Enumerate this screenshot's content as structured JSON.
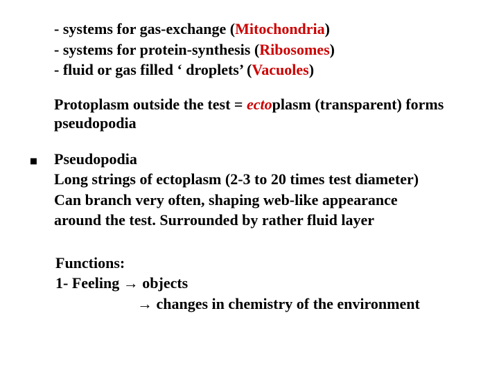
{
  "colors": {
    "text": "#000000",
    "highlight": "#cc0000",
    "background": "#ffffff"
  },
  "typography": {
    "family": "Times New Roman",
    "size_pt": 22,
    "bullet_size_pt": 36
  },
  "systems": {
    "line1_pre": "- systems for gas-exchange (",
    "line1_hi": "Mitochondria",
    "line1_post": ")",
    "line2_pre": "- systems for protein-synthesis (",
    "line2_hi": "Ribosomes",
    "line2_post": ")",
    "line3_pre": "- fluid or gas filled ‘ droplets’ (",
    "line3_hi": "Vacuoles",
    "line3_post": ")"
  },
  "protoplasm": {
    "pre": "Protoplasm outside the test = ",
    "ecto_prefix": "ecto",
    "ecto_rest": "plasm (transparent) forms pseudopodia"
  },
  "pseudo": {
    "title": "Pseudopodia",
    "l1": "Long strings of ectoplasm (2-3 to 20 times test diameter)",
    "l2": "Can branch very often, shaping web-like appearance",
    "l3": "around the test. Surrounded by rather fluid layer"
  },
  "functions": {
    "heading": "Functions:",
    "row1_pre": "1- Feeling  ",
    "arrow": "→",
    "row1_post": " objects",
    "row2_post": " changes in chemistry of the environment"
  }
}
